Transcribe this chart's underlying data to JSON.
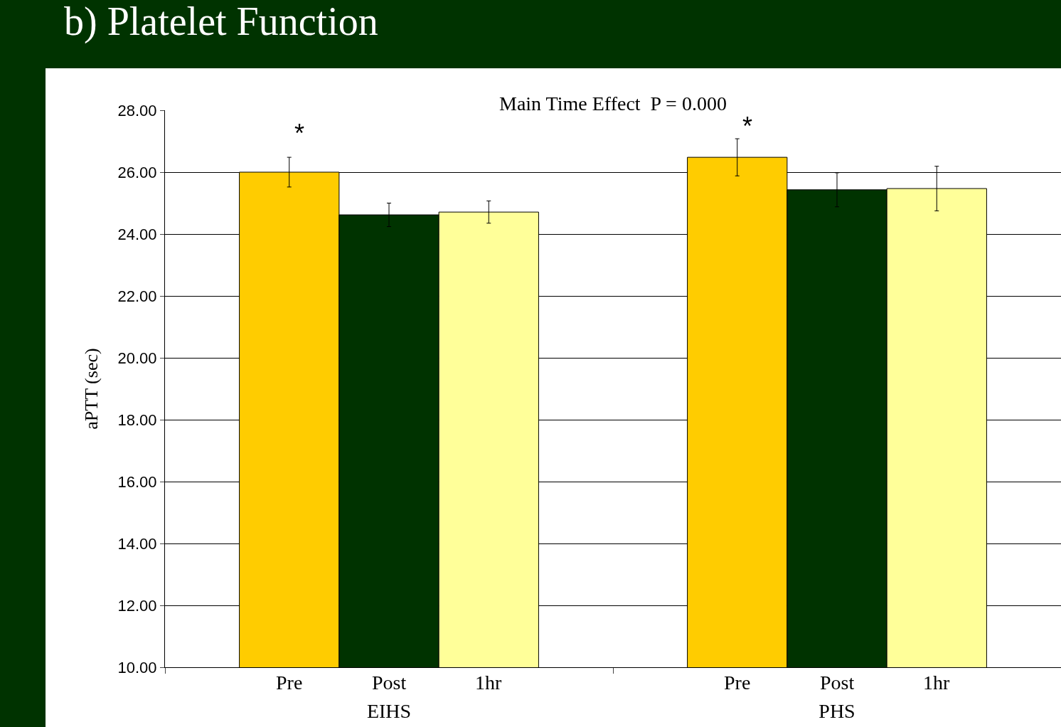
{
  "chart_data": {
    "type": "bar",
    "title": "b) Platelet Function",
    "ylabel": "aPTT (sec)",
    "categories": [
      "EIHS",
      "PHS"
    ],
    "series": [
      {
        "name": "Pre",
        "color": "#ffcc00",
        "values": [
          26.0,
          26.48
        ],
        "errors": [
          0.48,
          0.6
        ]
      },
      {
        "name": "Post",
        "color": "#003300",
        "values": [
          24.62,
          25.43
        ],
        "errors": [
          0.38,
          0.55
        ]
      },
      {
        "name": "1hr",
        "color": "#ffff99",
        "values": [
          24.71,
          25.47
        ],
        "errors": [
          0.36,
          0.72
        ]
      }
    ],
    "ylim": [
      10,
      28
    ],
    "yticks": [
      {
        "value": 10,
        "label": "10.00"
      },
      {
        "value": 12,
        "label": "12.00"
      },
      {
        "value": 14,
        "label": "14.00"
      },
      {
        "value": 16,
        "label": "16.00"
      },
      {
        "value": 18,
        "label": "18.00"
      },
      {
        "value": 20,
        "label": "20.00"
      },
      {
        "value": 22,
        "label": "22.00"
      },
      {
        "value": 24,
        "label": "24.00"
      },
      {
        "value": 26,
        "label": "26.00"
      },
      {
        "value": 28,
        "label": "28.00"
      }
    ],
    "grid": "y",
    "legend": false,
    "annotations": [
      "Main Time Effect  P = 0.000",
      "*",
      "*"
    ]
  }
}
